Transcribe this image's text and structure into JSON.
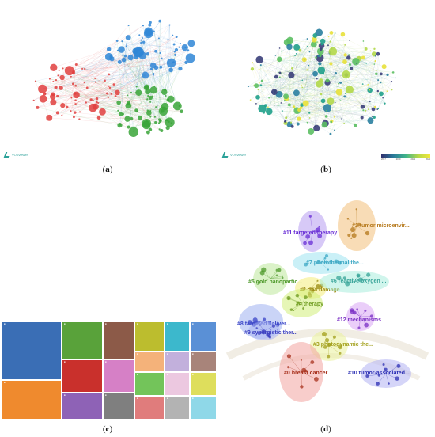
{
  "panels": {
    "a": {
      "caption_letter": "a",
      "logo": "VOSviewer"
    },
    "b": {
      "caption_letter": "b",
      "logo": "VOSviewer",
      "colorbar_ticks": [
        "2017",
        "2019",
        "2021",
        "2023"
      ]
    },
    "c": {
      "caption_letter": "c"
    },
    "d": {
      "caption_letter": "d",
      "clusters": [
        {
          "id": "c11",
          "label": "#11 targeted therapy",
          "color": "#6a2fd6"
        },
        {
          "id": "c1",
          "label": "#1 tumor microenvir...",
          "color": "#b6791c"
        },
        {
          "id": "c7",
          "label": "#7 photothermal the...",
          "color": "#3fa9c5"
        },
        {
          "id": "c5",
          "label": "#5 gold nanopartic...",
          "color": "#4f9a2c"
        },
        {
          "id": "c2",
          "label": "#2 dna damage",
          "color": "#9a8a10"
        },
        {
          "id": "c6",
          "label": "#6 reactive oxygen ...",
          "color": "#3aa59a"
        },
        {
          "id": "c4",
          "label": "#4 therapy",
          "color": "#6c9a1c"
        },
        {
          "id": "c12",
          "label": "#12 mechanisms",
          "color": "#7a2fc4"
        },
        {
          "id": "c8",
          "label": "#8 targeted deliver...",
          "color": "#3b46c8"
        },
        {
          "id": "c9",
          "label": "#9 synergistic ther...",
          "color": "#3b3fc0"
        },
        {
          "id": "c3",
          "label": "#3 photodynamic the...",
          "color": "#a3a01c"
        },
        {
          "id": "c0",
          "label": "#0 breast cancer",
          "color": "#a8321e"
        },
        {
          "id": "c10",
          "label": "#10 tumor-associated...",
          "color": "#2c2fb4"
        }
      ]
    }
  }
}
